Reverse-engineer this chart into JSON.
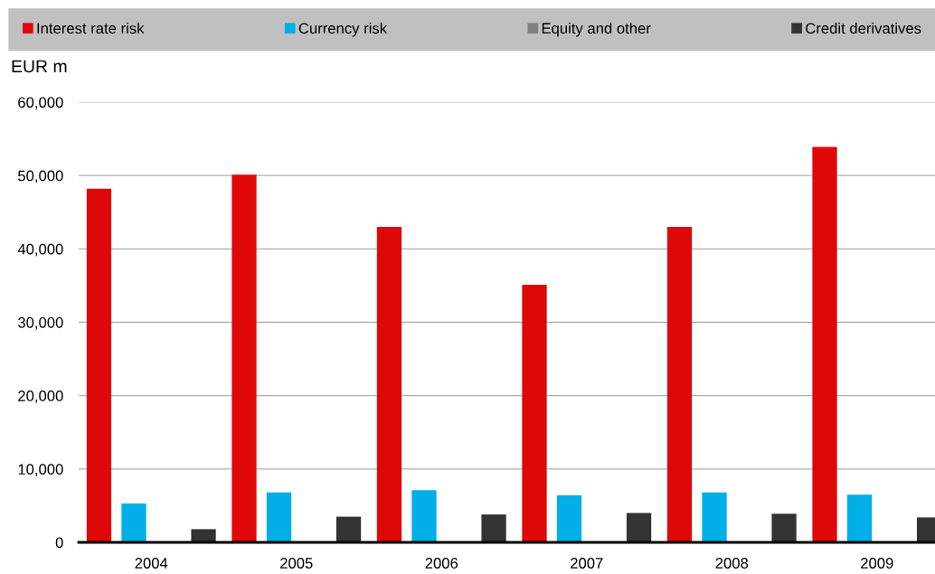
{
  "chart_data": {
    "type": "bar",
    "ylabel": "EUR m",
    "categories": [
      "2004",
      "2005",
      "2006",
      "2007",
      "2008",
      "2009"
    ],
    "series": [
      {
        "name": "Interest rate risk",
        "color": "#df0808",
        "values": [
          48200,
          50100,
          43000,
          35100,
          43000,
          53900
        ]
      },
      {
        "name": "Currency risk",
        "color": "#00aee8",
        "values": [
          5300,
          6800,
          7100,
          6400,
          6800,
          6500
        ]
      },
      {
        "name": "Equity and other",
        "color": "#808080",
        "values": [
          0,
          0,
          0,
          0,
          0,
          0
        ]
      },
      {
        "name": "Credit derivatives",
        "color": "#333333",
        "values": [
          1800,
          3500,
          3800,
          4000,
          3900,
          3400
        ]
      }
    ],
    "ylim": [
      0,
      60000
    ],
    "yticks": [
      {
        "value": 0,
        "label": "0"
      },
      {
        "value": 10000,
        "label": "10,000"
      },
      {
        "value": 20000,
        "label": "20,000"
      },
      {
        "value": 30000,
        "label": "30,000"
      },
      {
        "value": 40000,
        "label": "40,000"
      },
      {
        "value": 50000,
        "label": "50,000"
      },
      {
        "value": 60000,
        "label": "60,000"
      }
    ],
    "grid": "y",
    "legend": "top"
  }
}
